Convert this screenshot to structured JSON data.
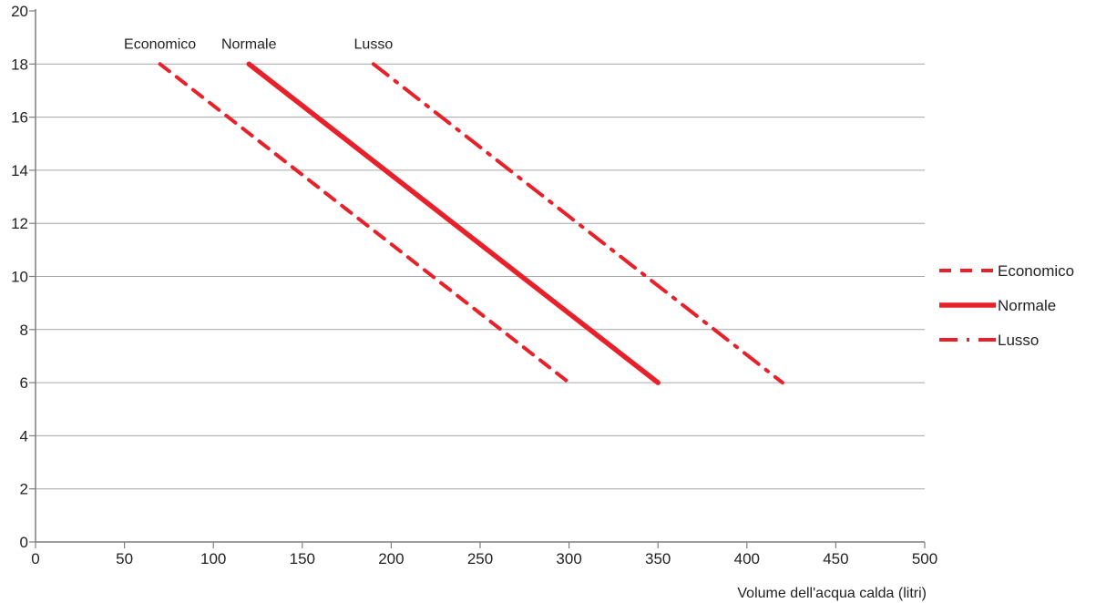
{
  "chart_data": {
    "type": "line",
    "title": "",
    "xlabel": "Volume dell'acqua calda (litri)",
    "ylabel": "",
    "xlim": [
      0,
      500
    ],
    "ylim": [
      0,
      20
    ],
    "x_ticks": [
      0,
      50,
      100,
      150,
      200,
      250,
      300,
      350,
      400,
      450,
      500
    ],
    "y_ticks": [
      0,
      2,
      4,
      6,
      8,
      10,
      12,
      14,
      16,
      18,
      20
    ],
    "grid": "horizontal",
    "legend_position": "right",
    "line_color": "#e8202a",
    "series": [
      {
        "name": "Economico",
        "style": "dashed",
        "points": [
          [
            70,
            18
          ],
          [
            300,
            6
          ]
        ]
      },
      {
        "name": "Normale",
        "style": "solid",
        "points": [
          [
            120,
            18
          ],
          [
            350,
            6
          ]
        ]
      },
      {
        "name": "Lusso",
        "style": "dash-dot",
        "points": [
          [
            190,
            18
          ],
          [
            420,
            6
          ]
        ]
      }
    ]
  }
}
